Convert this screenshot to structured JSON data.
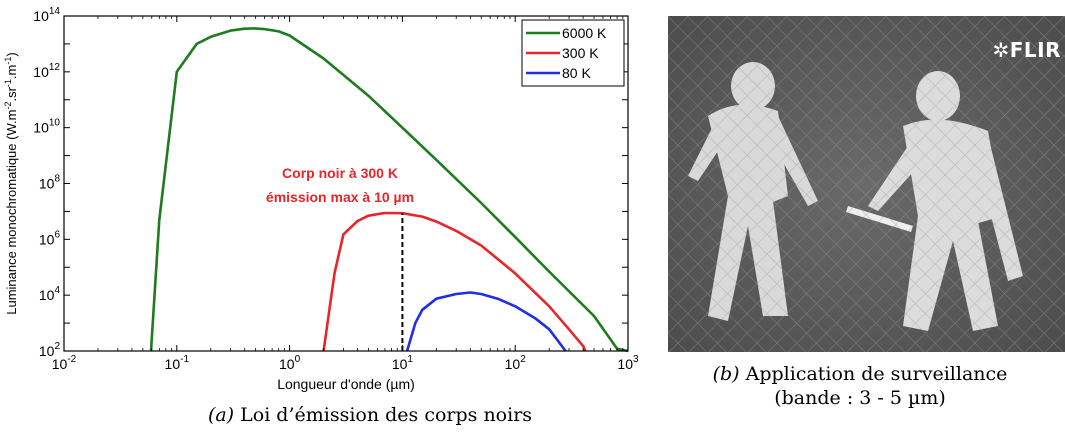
{
  "chart_data": {
    "type": "line",
    "title": "",
    "xlabel": "Longueur d'onde (µm)",
    "ylabel": "Luminance monochromatique (W.m-2.sr-1.m-1)",
    "x_scale": "log",
    "y_scale": "log",
    "xlim": [
      0.01,
      1000
    ],
    "ylim": [
      100,
      100000000000000
    ],
    "x_ticks": [
      "10-2",
      "10-1",
      "100",
      "101",
      "102",
      "103"
    ],
    "y_ticks": [
      "102",
      "104",
      "106",
      "108",
      "1010",
      "1012",
      "1014"
    ],
    "legend_position": "top-right",
    "grid": false,
    "series": [
      {
        "name": "6000 K",
        "color": "#1e7b1e",
        "points": [
          [
            0.059,
            100
          ],
          [
            0.07,
            5000000
          ],
          [
            0.1,
            1000000000000
          ],
          [
            0.15,
            10000000000000
          ],
          [
            0.2,
            18000000000000
          ],
          [
            0.3,
            30000000000000
          ],
          [
            0.4,
            35000000000000
          ],
          [
            0.48,
            36000000000000
          ],
          [
            0.6,
            34000000000000
          ],
          [
            0.8,
            28000000000000
          ],
          [
            1,
            20000000000000
          ],
          [
            2,
            3000000000000
          ],
          [
            5,
            140000000000
          ],
          [
            10,
            10000000000
          ],
          [
            20,
            700000000
          ],
          [
            50,
            20000000
          ],
          [
            100,
            1200000
          ],
          [
            200,
            70000
          ],
          [
            500,
            1800
          ],
          [
            800,
            120
          ],
          [
            1000,
            100
          ]
        ]
      },
      {
        "name": "300 K",
        "color": "#e8252a",
        "points": [
          [
            2,
            100
          ],
          [
            2.5,
            60000
          ],
          [
            3,
            1500000
          ],
          [
            4,
            4500000
          ],
          [
            5,
            7000000
          ],
          [
            7,
            8800000
          ],
          [
            10,
            8600000
          ],
          [
            15,
            6500000
          ],
          [
            20,
            4300000
          ],
          [
            30,
            2000000
          ],
          [
            50,
            600000
          ],
          [
            100,
            60000
          ],
          [
            200,
            4000
          ],
          [
            300,
            600
          ],
          [
            400,
            150
          ],
          [
            420,
            100
          ]
        ]
      },
      {
        "name": "80 K",
        "color": "#1f2ee8",
        "points": [
          [
            11,
            100
          ],
          [
            13,
            1000
          ],
          [
            15,
            3000
          ],
          [
            20,
            7500
          ],
          [
            30,
            11000
          ],
          [
            40,
            12500
          ],
          [
            50,
            11000
          ],
          [
            70,
            7500
          ],
          [
            100,
            4000
          ],
          [
            150,
            1500
          ],
          [
            200,
            600
          ],
          [
            280,
            100
          ]
        ]
      }
    ],
    "peak_line": {
      "x": 10,
      "y_from": 100,
      "y_to": 8600000
    },
    "annotation": {
      "lines": [
        "Corp noir à 300 K",
        "émission max à 10 µm"
      ],
      "color": "#e8252a"
    }
  },
  "captions": {
    "a_label": "(a)",
    "a_text": " Loi d’émission des corps noirs",
    "b_label": "(b)",
    "b_text_line1": " Application de surveillance",
    "b_text_line2": "(bande : 3 - 5 µm)"
  },
  "thermal_image": {
    "logo": "FLIR",
    "icon": "flir-logo-icon"
  }
}
